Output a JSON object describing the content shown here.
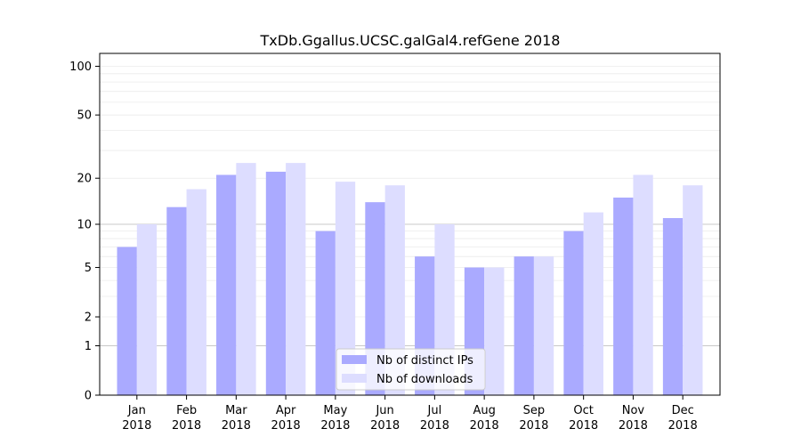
{
  "chart_data": {
    "type": "bar",
    "title": "TxDb.Ggallus.UCSC.galGal4.refGene 2018",
    "xlabel": "",
    "ylabel": "",
    "yscale": "log1p",
    "ylim": [
      0,
      120
    ],
    "yticks": [
      0,
      1,
      2,
      5,
      10,
      20,
      50,
      100
    ],
    "grid": "horizontal",
    "legend_position": "bottom-center",
    "categories": [
      [
        "Jan",
        "2018"
      ],
      [
        "Feb",
        "2018"
      ],
      [
        "Mar",
        "2018"
      ],
      [
        "Apr",
        "2018"
      ],
      [
        "May",
        "2018"
      ],
      [
        "Jun",
        "2018"
      ],
      [
        "Jul",
        "2018"
      ],
      [
        "Aug",
        "2018"
      ],
      [
        "Sep",
        "2018"
      ],
      [
        "Oct",
        "2018"
      ],
      [
        "Nov",
        "2018"
      ],
      [
        "Dec",
        "2018"
      ]
    ],
    "series": [
      {
        "name": "Nb of distinct IPs",
        "color": "#aaaaff",
        "values": [
          7,
          13,
          21,
          22,
          9,
          14,
          6,
          5,
          6,
          9,
          15,
          11
        ]
      },
      {
        "name": "Nb of downloads",
        "color": "#ddddff",
        "values": [
          10,
          17,
          25,
          25,
          19,
          18,
          10,
          5,
          6,
          12,
          21,
          18
        ]
      }
    ]
  }
}
